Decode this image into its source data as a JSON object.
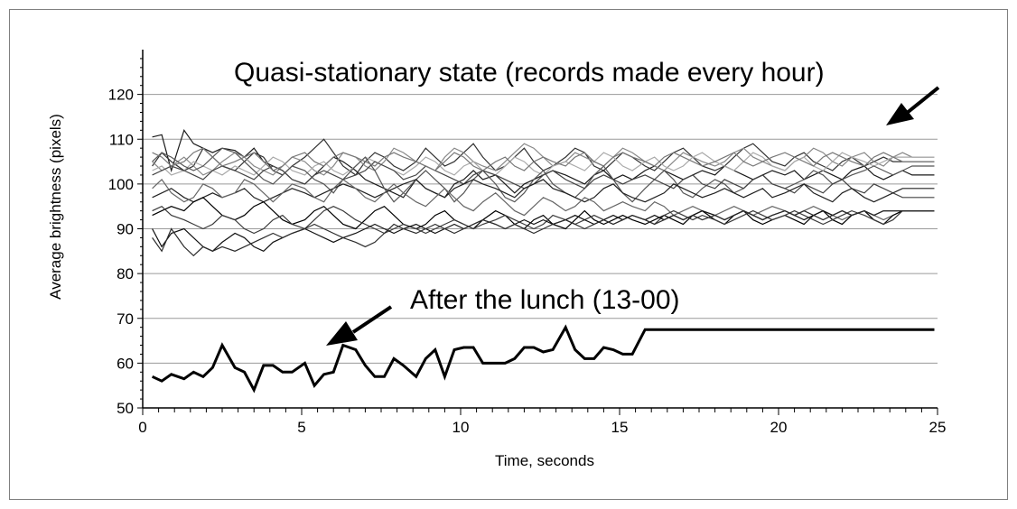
{
  "chart_data": {
    "type": "line",
    "title": "",
    "xlabel": "Time, seconds",
    "ylabel": "Average brightness (pixels)",
    "xlim": [
      0,
      25
    ],
    "ylim": [
      50,
      130
    ],
    "x_ticks": [
      0,
      5,
      10,
      15,
      20,
      25
    ],
    "y_ticks": [
      50,
      60,
      70,
      80,
      90,
      100,
      110,
      120
    ],
    "grid": true,
    "legend": "none",
    "x": [
      0.3,
      0.6,
      0.9,
      1.3,
      1.6,
      1.9,
      2.2,
      2.5,
      2.9,
      3.2,
      3.5,
      3.8,
      4.1,
      4.4,
      4.7,
      5.1,
      5.4,
      5.7,
      6.0,
      6.3,
      6.7,
      7.0,
      7.3,
      7.6,
      7.9,
      8.2,
      8.6,
      8.9,
      9.2,
      9.5,
      9.8,
      10.1,
      10.4,
      10.7,
      11.1,
      11.4,
      11.7,
      12.0,
      12.3,
      12.6,
      12.9,
      13.3,
      13.6,
      13.9,
      14.2,
      14.5,
      14.8,
      15.1,
      15.4,
      15.8,
      16.1,
      16.4,
      16.7,
      17.0,
      17.3,
      17.6,
      18.0,
      18.3,
      18.6,
      18.9,
      19.2,
      19.5,
      19.8,
      20.2,
      20.5,
      20.8,
      21.1,
      21.4,
      21.7,
      22.0,
      22.3,
      22.7,
      23.0,
      23.3,
      23.6,
      23.9,
      24.2,
      24.5,
      24.9,
      25.2
    ],
    "series": [
      {
        "name": "",
        "color": "#000000",
        "width": 3,
        "values": [
          57,
          56,
          57.5,
          56.5,
          58,
          57,
          59,
          64,
          59,
          58,
          54,
          59.5,
          59.5,
          58,
          58,
          60,
          55,
          57.5,
          58,
          64,
          63,
          59.5,
          57,
          57,
          61,
          59.5,
          57,
          61,
          63,
          57,
          63,
          63.5,
          63.5,
          60,
          60,
          60,
          61,
          63.5,
          63.5,
          62.5,
          63,
          68,
          63,
          61,
          61,
          63.5,
          63,
          62,
          62,
          67.5,
          67.5,
          67.5,
          67.5,
          67.5,
          67.5,
          67.5,
          67.5,
          67.5,
          67.5,
          67.5,
          67.5,
          67.5,
          67.5,
          67.5,
          67.5,
          67.5,
          67.5,
          67.5,
          67.5,
          67.5,
          67.5,
          67.5,
          67.5,
          67.5,
          67.5,
          67.5,
          67.5,
          67.5,
          67.5,
          67.5
        ]
      },
      {
        "name": "",
        "color": "#1a1a1a",
        "width": 1.2,
        "values": [
          110.5,
          111,
          103,
          112,
          109,
          108,
          107,
          108,
          107.5,
          106,
          108,
          105,
          104,
          103,
          101,
          100,
          102,
          104,
          106,
          105,
          103,
          101,
          100,
          99,
          98,
          97,
          101,
          99,
          98,
          97,
          100,
          101,
          103,
          101,
          102,
          100,
          98,
          100,
          101,
          102,
          103,
          102,
          101,
          100,
          102,
          103,
          101,
          102,
          101,
          103,
          104,
          103,
          102,
          101,
          102,
          103,
          102,
          104,
          103,
          102,
          101,
          102,
          103,
          102,
          103,
          101,
          102,
          103,
          102,
          101,
          103,
          104,
          102,
          101,
          102,
          103,
          102,
          102,
          102,
          102
        ]
      },
      {
        "name": "",
        "color": "#333333",
        "width": 1.2,
        "values": [
          104,
          107,
          105,
          103,
          104,
          108,
          106,
          104,
          103,
          105,
          107,
          106,
          103,
          102,
          104,
          106,
          108,
          110,
          107,
          104,
          102,
          105,
          107,
          106,
          104,
          103,
          105,
          108,
          106,
          104,
          105,
          107,
          109,
          106,
          103,
          104,
          106,
          108,
          105,
          103,
          104,
          106,
          108,
          107,
          104,
          103,
          105,
          107,
          106,
          104,
          103,
          105,
          107,
          108,
          106,
          104,
          103,
          104,
          106,
          108,
          109,
          107,
          105,
          104,
          106,
          107,
          105,
          104,
          103,
          105,
          106,
          104,
          105,
          106,
          105,
          105,
          105,
          105,
          105,
          105
        ]
      },
      {
        "name": "",
        "color": "#888888",
        "width": 1.2,
        "values": [
          105,
          103,
          104,
          106,
          104,
          102,
          103,
          105,
          107,
          106,
          104,
          103,
          102,
          104,
          106,
          105,
          103,
          102,
          104,
          107,
          106,
          104,
          103,
          105,
          108,
          107,
          105,
          104,
          103,
          106,
          108,
          107,
          105,
          104,
          103,
          105,
          107,
          109,
          108,
          106,
          104,
          105,
          107,
          106,
          105,
          104,
          106,
          108,
          107,
          105,
          104,
          103,
          105,
          107,
          106,
          105,
          104,
          105,
          107,
          108,
          106,
          105,
          104,
          103,
          105,
          106,
          108,
          107,
          105,
          104,
          106,
          107,
          105,
          104,
          106,
          107,
          106,
          106,
          106,
          106
        ]
      },
      {
        "name": "",
        "color": "#aaaaaa",
        "width": 1.2,
        "values": [
          103,
          104,
          102,
          103,
          105,
          104,
          103,
          102,
          104,
          103,
          102,
          104,
          106,
          105,
          103,
          102,
          104,
          105,
          103,
          102,
          104,
          106,
          105,
          104,
          103,
          102,
          104,
          106,
          105,
          103,
          102,
          104,
          105,
          103,
          102,
          104,
          106,
          105,
          103,
          102,
          104,
          105,
          104,
          103,
          105,
          107,
          106,
          104,
          103,
          105,
          106,
          104,
          103,
          104,
          106,
          107,
          105,
          104,
          103,
          105,
          107,
          106,
          104,
          103,
          105,
          106,
          104,
          103,
          105,
          107,
          106,
          105,
          104,
          105,
          106,
          106,
          106,
          106,
          106,
          106
        ]
      },
      {
        "name": "",
        "color": "#555555",
        "width": 1.2,
        "values": [
          105,
          107,
          106,
          104,
          103,
          104,
          106,
          108,
          107,
          105,
          103,
          101,
          100,
          102,
          104,
          103,
          101,
          100,
          98,
          101,
          104,
          106,
          103,
          99,
          96,
          98,
          101,
          103,
          101,
          99,
          96,
          98,
          101,
          103,
          100,
          97,
          96,
          98,
          101,
          103,
          100,
          98,
          97,
          99,
          102,
          104,
          101,
          98,
          96,
          99,
          101,
          103,
          101,
          98,
          97,
          99,
          101,
          100,
          98,
          99,
          101,
          102,
          100,
          99,
          100,
          101,
          103,
          102,
          100,
          101,
          102,
          103,
          104,
          103,
          102,
          103,
          104,
          104,
          104,
          104
        ]
      },
      {
        "name": "",
        "color": "#444444",
        "width": 1.2,
        "values": [
          102,
          103,
          104,
          103,
          102,
          101,
          103,
          104,
          103,
          102,
          101,
          103,
          104,
          103,
          101,
          100,
          102,
          103,
          102,
          101,
          102,
          103,
          105,
          104,
          103,
          101,
          102,
          104,
          103,
          102,
          101,
          100,
          102,
          103,
          102,
          101,
          100,
          99,
          100,
          102,
          103,
          101,
          100,
          99,
          101,
          102,
          101,
          100,
          101,
          102,
          101,
          100,
          99,
          101,
          102,
          100,
          99,
          101,
          100,
          99,
          101,
          102,
          100,
          99,
          98,
          100,
          99,
          98,
          100,
          101,
          99,
          98,
          100,
          99,
          98,
          97,
          97,
          97,
          97,
          97
        ]
      },
      {
        "name": "",
        "color": "#222222",
        "width": 1.2,
        "values": [
          97,
          98,
          99,
          97,
          96,
          97,
          98,
          97,
          98,
          99,
          97,
          96,
          97,
          98,
          99,
          98,
          97,
          98,
          99,
          100,
          99,
          98,
          97,
          98,
          99,
          100,
          101,
          99,
          98,
          97,
          99,
          100,
          101,
          100,
          99,
          98,
          97,
          99,
          100,
          101,
          99,
          98,
          97,
          96,
          97,
          99,
          100,
          98,
          97,
          96,
          97,
          98,
          100,
          99,
          98,
          97,
          98,
          99,
          98,
          97,
          98,
          99,
          97,
          98,
          99,
          100,
          98,
          97,
          96,
          98,
          99,
          97,
          96,
          97,
          98,
          99,
          99,
          99,
          99,
          99
        ]
      },
      {
        "name": "",
        "color": "#666666",
        "width": 1.2,
        "values": [
          99,
          101,
          98,
          96,
          97,
          100,
          99,
          97,
          98,
          101,
          100,
          98,
          96,
          98,
          100,
          99,
          97,
          96,
          99,
          101,
          99,
          97,
          96,
          98,
          100,
          98,
          96,
          95,
          97,
          99,
          97,
          95,
          94,
          96,
          98,
          96,
          94,
          93,
          95,
          97,
          96,
          94,
          95,
          97,
          96,
          94,
          95,
          96,
          95,
          94,
          96,
          95,
          93,
          94,
          95,
          94,
          93,
          94,
          95,
          94,
          93,
          94,
          95,
          94,
          93,
          94,
          95,
          94,
          93,
          92,
          93,
          94,
          93,
          92,
          93,
          94,
          94,
          94,
          94,
          94
        ]
      },
      {
        "name": "",
        "color": "#000000",
        "width": 1.2,
        "values": [
          93,
          94,
          95,
          94,
          96,
          97,
          95,
          93,
          92,
          93,
          95,
          96,
          94,
          92,
          91,
          92,
          94,
          95,
          93,
          91,
          90,
          92,
          94,
          95,
          93,
          91,
          90,
          91,
          93,
          94,
          92,
          91,
          90,
          92,
          94,
          93,
          91,
          90,
          92,
          93,
          91,
          90,
          92,
          94,
          92,
          91,
          92,
          93,
          92,
          91,
          92,
          93,
          92,
          91,
          93,
          94,
          92,
          91,
          93,
          94,
          92,
          91,
          92,
          93,
          92,
          91,
          93,
          94,
          92,
          91,
          93,
          94,
          92,
          91,
          93,
          94,
          94,
          94,
          94,
          94
        ]
      },
      {
        "name": "",
        "color": "#3a3a3a",
        "width": 1.2,
        "values": [
          94,
          95,
          93,
          92,
          91,
          90,
          91,
          93,
          92,
          90,
          89,
          90,
          92,
          93,
          91,
          90,
          92,
          94,
          95,
          94,
          92,
          91,
          90,
          89,
          90,
          91,
          90,
          89,
          90,
          91,
          92,
          91,
          90,
          91,
          92,
          93,
          92,
          91,
          90,
          91,
          93,
          92,
          91,
          92,
          93,
          92,
          91,
          92,
          93,
          92,
          91,
          93,
          94,
          93,
          92,
          93,
          92,
          91,
          92,
          93,
          94,
          93,
          92,
          93,
          94,
          93,
          92,
          91,
          92,
          93,
          94,
          93,
          92,
          91,
          92,
          94,
          94,
          94,
          94,
          94
        ]
      },
      {
        "name": "",
        "color": "#111111",
        "width": 1.2,
        "values": [
          90,
          86,
          89,
          90,
          88,
          86,
          85,
          87,
          89,
          88,
          86,
          85,
          87,
          88,
          89,
          90,
          89,
          88,
          87,
          88,
          89,
          90,
          91,
          90,
          89,
          90,
          91,
          90,
          89,
          90,
          91,
          90,
          91,
          92,
          91,
          90,
          91,
          92,
          91,
          92,
          91,
          92,
          93,
          92,
          91,
          92,
          93,
          92,
          93,
          92,
          93,
          92,
          93,
          92,
          93,
          94,
          93,
          92,
          93,
          94,
          93,
          92,
          93,
          94,
          93,
          92,
          93,
          94,
          93,
          94,
          93,
          94,
          93,
          94,
          94,
          94,
          94,
          94,
          94,
          94
        ]
      },
      {
        "name": "",
        "color": "#2b2b2b",
        "width": 1.2,
        "values": [
          88,
          85,
          90,
          86,
          84,
          86,
          85,
          86,
          85,
          86,
          87,
          88,
          89,
          88,
          89,
          90,
          91,
          90,
          89,
          88,
          87,
          86,
          87,
          89,
          91,
          90,
          89,
          90,
          91,
          90,
          89,
          90,
          91,
          92,
          91,
          90,
          91,
          90,
          89,
          90,
          91,
          92,
          91,
          90,
          91,
          92,
          91,
          92,
          93,
          92,
          91,
          92,
          93,
          92,
          93,
          92,
          93,
          92,
          93,
          94,
          93,
          92,
          93,
          94,
          93,
          94,
          93,
          92,
          93,
          94,
          93,
          94,
          93,
          94,
          94,
          94,
          94,
          94,
          94,
          94
        ]
      },
      {
        "name": "",
        "color": "#777777",
        "width": 1.2,
        "values": [
          107,
          106,
          104,
          105,
          107,
          108,
          106,
          104,
          105,
          106,
          107,
          105,
          103,
          104,
          106,
          107,
          105,
          104,
          106,
          107,
          106,
          105,
          104,
          106,
          107,
          106,
          105,
          104,
          103,
          105,
          107,
          106,
          104,
          103,
          105,
          106,
          104,
          103,
          105,
          106,
          105,
          104,
          106,
          107,
          105,
          104,
          106,
          107,
          106,
          105,
          104,
          106,
          107,
          106,
          105,
          104,
          105,
          106,
          107,
          105,
          104,
          105,
          106,
          107,
          106,
          105,
          104,
          106,
          107,
          106,
          105,
          104,
          106,
          107,
          106,
          105,
          105,
          105,
          105,
          105
        ]
      }
    ],
    "annotations": [
      {
        "text": "Quasi-stationary state (records made every hour)"
      },
      {
        "text": "After the lunch (13-00)"
      }
    ]
  }
}
